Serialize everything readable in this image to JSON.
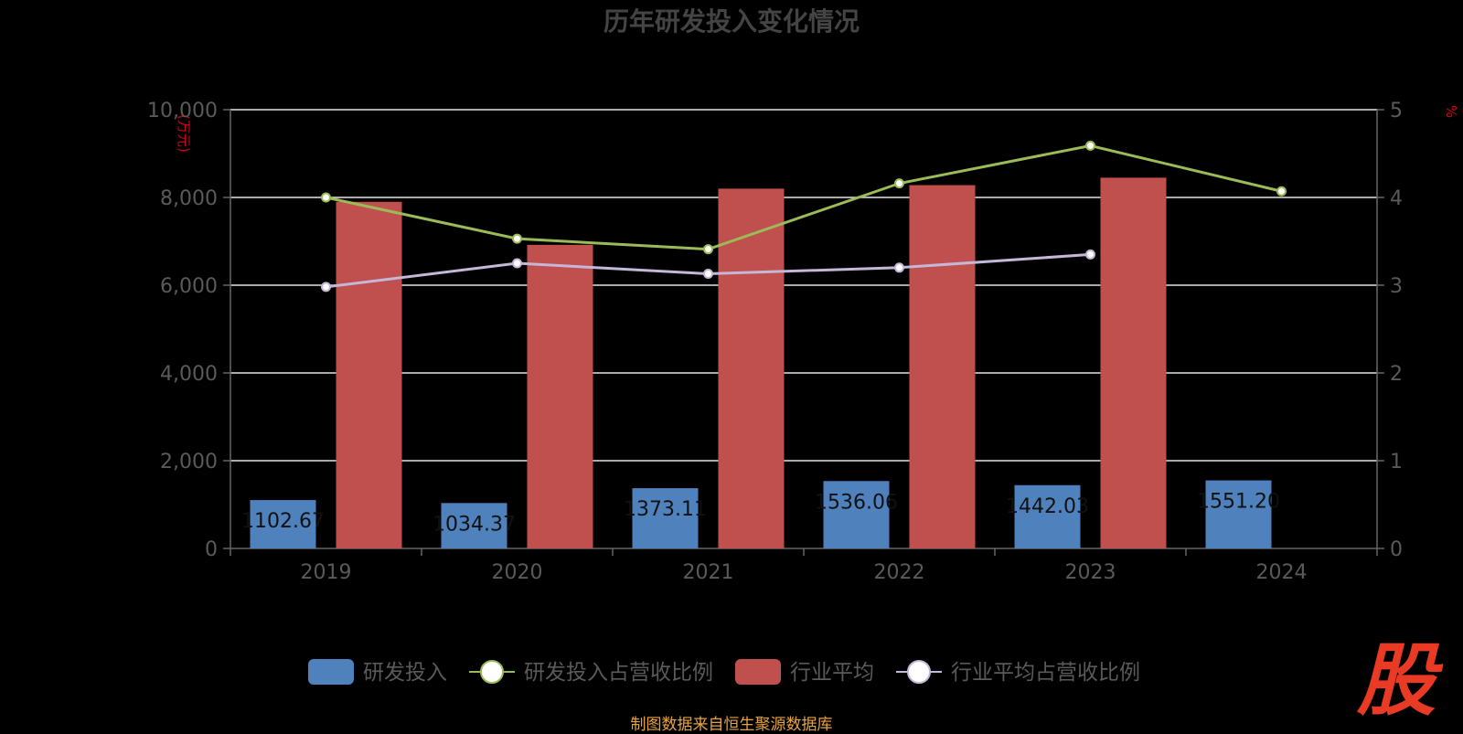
{
  "chart_data": {
    "type": "bar",
    "title": "历年研发投入变化情况",
    "categories": [
      "2019",
      "2020",
      "2021",
      "2022",
      "2023",
      "2024"
    ],
    "y_left": {
      "unit": "(万元)",
      "ylim": [
        0,
        10000
      ],
      "ticks": [
        "0",
        "2,000",
        "4,000",
        "6,000",
        "8,000",
        "10,000"
      ]
    },
    "y_right": {
      "unit": "%",
      "ylim": [
        0,
        5
      ],
      "ticks": [
        "0",
        "1",
        "2",
        "3",
        "4",
        "5"
      ]
    },
    "series": [
      {
        "name": "研发投入",
        "type": "bar",
        "axis": "left",
        "color": "#4f81bd",
        "values": [
          1102.67,
          1034.37,
          1373.11,
          1536.06,
          1442.03,
          1551.2
        ],
        "labels": [
          "1102.67",
          "1034.37",
          "1373.11",
          "1536.06",
          "1442.03",
          "1551.20"
        ]
      },
      {
        "name": "研发投入占营收比例",
        "type": "line",
        "axis": "right",
        "color": "#9bbb59",
        "values": [
          4.0,
          3.53,
          3.41,
          4.16,
          4.59,
          4.07
        ]
      },
      {
        "name": "行业平均",
        "type": "bar",
        "axis": "left",
        "color": "#c0504d",
        "values": [
          7900,
          6920,
          8200,
          8280,
          8450,
          null
        ]
      },
      {
        "name": "行业平均占营收比例",
        "type": "line",
        "axis": "right",
        "color": "#c4b7d7",
        "values": [
          2.98,
          3.25,
          3.13,
          3.2,
          3.35,
          null
        ]
      }
    ],
    "grid": true,
    "legend_position": "bottom"
  },
  "source_text": "制图数据来自恒生聚源数据库",
  "logo_text": "股"
}
